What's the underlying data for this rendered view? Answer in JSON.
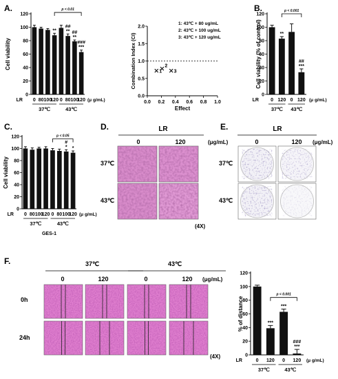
{
  "panel_letters": {
    "A": "A.",
    "B": "B.",
    "C": "C.",
    "D": "D.",
    "E": "E.",
    "F": "F."
  },
  "chart_data": [
    {
      "panel": "A-left",
      "type": "bar",
      "ylabel": "Cell viability",
      "ylim": [
        0,
        120
      ],
      "yticks": [
        "0",
        "20",
        "40",
        "60",
        "80",
        "100",
        "120"
      ],
      "x_prefix": "LR",
      "categories": [
        "0",
        "80",
        "100",
        "120",
        "0",
        "80",
        "100",
        "120"
      ],
      "values": [
        100,
        98,
        96,
        88,
        99,
        87,
        79,
        63
      ],
      "errors": [
        3,
        2,
        2,
        3,
        4,
        3,
        2,
        3
      ],
      "groups": [
        "37℃",
        "43℃"
      ],
      "unit": "(μ g/mL)",
      "bar_marks": [
        "",
        "",
        "",
        "**",
        "",
        "##\n**",
        "##\n**",
        "###\n***"
      ],
      "bracket_label": "p < 0.01"
    },
    {
      "panel": "A-right",
      "type": "scatter",
      "ylabel": "Combination Index (CI)",
      "xlabel": "Effect",
      "xlim": [
        0,
        1.0
      ],
      "ylim": [
        0,
        2.0
      ],
      "xticks": [
        "0.0",
        "0.2",
        "0.4",
        "0.6",
        "0.8",
        "1.0"
      ],
      "yticks": [
        "0.0",
        "0.5",
        "1.0",
        "1.5",
        "2.0"
      ],
      "reference_line_y": 1.0,
      "points": [
        {
          "label": "1",
          "x": 0.13,
          "y": 0.72
        },
        {
          "label": "2",
          "x": 0.21,
          "y": 0.78
        },
        {
          "label": "3",
          "x": 0.34,
          "y": 0.72
        }
      ],
      "legend": [
        "1: 43℃ + 80 ug/mL",
        "2: 43℃ + 100 ug/mL",
        "3: 43℃ + 120 ug/mL"
      ]
    },
    {
      "panel": "B",
      "type": "bar",
      "ylabel": "Cell viability (% of control)",
      "ylim": [
        0,
        120
      ],
      "yticks": [
        "0",
        "20",
        "40",
        "60",
        "80",
        "100",
        "120"
      ],
      "x_prefix": "LR",
      "categories": [
        "0",
        "120",
        "0",
        "120"
      ],
      "values": [
        100,
        83,
        93,
        33
      ],
      "errors": [
        3,
        3,
        12,
        5
      ],
      "groups": [
        "37℃",
        "43℃"
      ],
      "unit": "(μ g/mL)",
      "bar_marks": [
        "",
        "**",
        "",
        "##\n***"
      ],
      "bracket_label": "p < 0.001"
    },
    {
      "panel": "C",
      "type": "bar",
      "ylabel": "Cell viability",
      "ylim": [
        0,
        120
      ],
      "yticks": [
        "0",
        "20",
        "40",
        "60",
        "80",
        "100",
        "120"
      ],
      "x_prefix": "LR",
      "categories": [
        "0",
        "80",
        "100",
        "120",
        "0",
        "80",
        "100",
        "120"
      ],
      "values": [
        100,
        98,
        100,
        100,
        97,
        96,
        95,
        93
      ],
      "errors": [
        3,
        3,
        2,
        3,
        3,
        3,
        3,
        3
      ],
      "groups": [
        "37℃",
        "43℃"
      ],
      "group_caption": "GES-1",
      "unit": "(μ g/mL)",
      "bar_marks": [
        "",
        "",
        "",
        "",
        "",
        "",
        "#\n*",
        "*"
      ],
      "bracket_label": "p < 0.05"
    },
    {
      "panel": "F-right",
      "type": "bar",
      "ylabel": "% of distance",
      "ylim": [
        0,
        120
      ],
      "yticks": [
        "0",
        "20",
        "40",
        "60",
        "80",
        "100",
        "120"
      ],
      "x_prefix": "LR",
      "categories": [
        "0",
        "120",
        "0",
        "120"
      ],
      "values": [
        100,
        39,
        63,
        2
      ],
      "errors": [
        2,
        4,
        4,
        6
      ],
      "groups": [
        "37℃",
        "43℃"
      ],
      "unit": "(μ g/mL)",
      "bar_marks": [
        "",
        "***",
        "***",
        "###\n***"
      ],
      "bracket_label": "p < 0.001"
    }
  ],
  "panel_D": {
    "title": "LR",
    "cols": [
      "0",
      "120"
    ],
    "unit": "(μg/mL)",
    "rows": [
      "37℃",
      "43℃"
    ],
    "mag": "(4X)",
    "color": "#d97bc4"
  },
  "panel_E": {
    "title": "LR",
    "cols": [
      "0",
      "120"
    ],
    "unit": "(μg/mL)",
    "rows": [
      "37℃",
      "43℃"
    ]
  },
  "panel_F": {
    "temps": [
      "37℃",
      "43℃"
    ],
    "cols": [
      "0",
      "120",
      "0",
      "120"
    ],
    "unit": "(μg/mL)",
    "rows": [
      "0h",
      "24h"
    ],
    "mag": "(4X)",
    "color": "#e281cf"
  }
}
